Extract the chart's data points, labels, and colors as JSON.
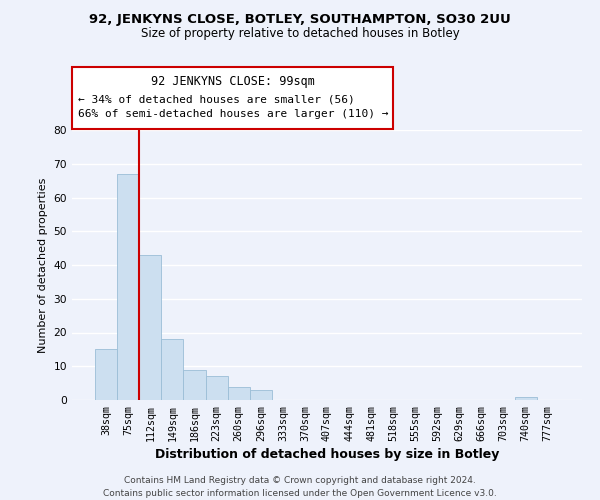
{
  "title_line1": "92, JENKYNS CLOSE, BOTLEY, SOUTHAMPTON, SO30 2UU",
  "title_line2": "Size of property relative to detached houses in Botley",
  "xlabel": "Distribution of detached houses by size in Botley",
  "ylabel": "Number of detached properties",
  "bar_labels": [
    "38sqm",
    "75sqm",
    "112sqm",
    "149sqm",
    "186sqm",
    "223sqm",
    "260sqm",
    "296sqm",
    "333sqm",
    "370sqm",
    "407sqm",
    "444sqm",
    "481sqm",
    "518sqm",
    "555sqm",
    "592sqm",
    "629sqm",
    "666sqm",
    "703sqm",
    "740sqm",
    "777sqm"
  ],
  "bar_values": [
    15,
    67,
    43,
    18,
    9,
    7,
    4,
    3,
    0,
    0,
    0,
    0,
    0,
    0,
    0,
    0,
    0,
    0,
    0,
    1,
    0
  ],
  "bar_color": "#ccdff0",
  "bar_edge_color": "#9bbdd6",
  "vline_color": "#cc0000",
  "annotation_line1": "92 JENKYNS CLOSE: 99sqm",
  "annotation_line2": "← 34% of detached houses are smaller (56)",
  "annotation_line3": "66% of semi-detached houses are larger (110) →",
  "annotation_box_color": "#ffffff",
  "annotation_box_edge": "#cc0000",
  "ylim": [
    0,
    80
  ],
  "yticks": [
    0,
    10,
    20,
    30,
    40,
    50,
    60,
    70,
    80
  ],
  "footer_line1": "Contains HM Land Registry data © Crown copyright and database right 2024.",
  "footer_line2": "Contains public sector information licensed under the Open Government Licence v3.0.",
  "bg_color": "#eef2fb",
  "grid_color": "#ffffff",
  "title1_fontsize": 9.5,
  "title2_fontsize": 8.5,
  "ylabel_fontsize": 8.0,
  "xlabel_fontsize": 9.0,
  "tick_fontsize": 7.2,
  "ann_fontsize": 8.0,
  "footer_fontsize": 6.5
}
